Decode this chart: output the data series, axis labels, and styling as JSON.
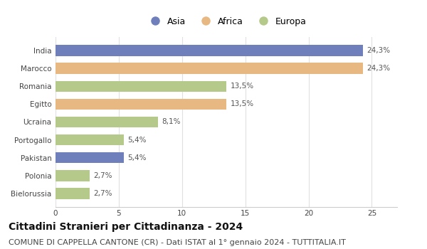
{
  "countries": [
    "India",
    "Marocco",
    "Romania",
    "Egitto",
    "Ucraina",
    "Portogallo",
    "Pakistan",
    "Polonia",
    "Bielorussia"
  ],
  "values": [
    24.3,
    24.3,
    13.5,
    13.5,
    8.1,
    5.4,
    5.4,
    2.7,
    2.7
  ],
  "labels": [
    "24,3%",
    "24,3%",
    "13,5%",
    "13,5%",
    "8,1%",
    "5,4%",
    "5,4%",
    "2,7%",
    "2,7%"
  ],
  "colors": [
    "#6e7fbc",
    "#e8b882",
    "#b5c98a",
    "#e8b882",
    "#b5c98a",
    "#b5c98a",
    "#6e7fbc",
    "#b5c98a",
    "#b5c98a"
  ],
  "legend_labels": [
    "Asia",
    "Africa",
    "Europa"
  ],
  "legend_colors": [
    "#6e7fbc",
    "#e8b882",
    "#b5c98a"
  ],
  "xlim": [
    0,
    27
  ],
  "xticks": [
    0,
    5,
    10,
    15,
    20,
    25
  ],
  "title": "Cittadini Stranieri per Cittadinanza - 2024",
  "subtitle": "COMUNE DI CAPPELLA CANTONE (CR) - Dati ISTAT al 1° gennaio 2024 - TUTTITALIA.IT",
  "title_fontsize": 10,
  "subtitle_fontsize": 8,
  "label_fontsize": 7.5,
  "tick_fontsize": 7.5,
  "legend_fontsize": 9,
  "background_color": "#ffffff"
}
